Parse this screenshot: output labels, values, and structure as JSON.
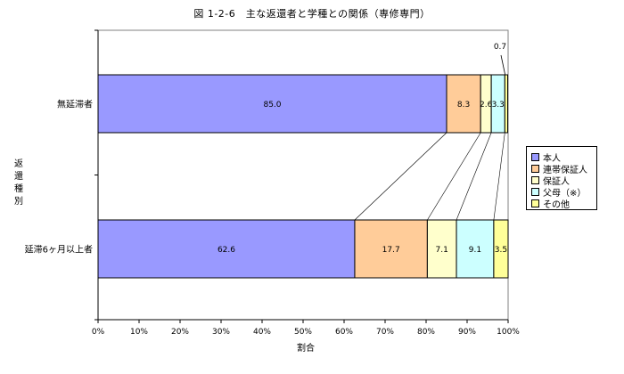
{
  "title": "図 1-2-6　主な返還者と学種との関係（専修専門）",
  "ylabel_chars": [
    "返",
    "還",
    "種",
    "別"
  ],
  "chart_data": {
    "type": "bar",
    "orientation": "horizontal",
    "stacked": "percent",
    "categories": [
      "無延滞者",
      "延滞6ヶ月以上者"
    ],
    "series": [
      {
        "name": "本人",
        "color": "#9999ff",
        "values": [
          85.0,
          62.6
        ],
        "labels": [
          "85.0",
          "62.6"
        ]
      },
      {
        "name": "連帯保証人",
        "color": "#ffcc99",
        "values": [
          8.3,
          17.7
        ],
        "labels": [
          "8.3",
          "17.7"
        ]
      },
      {
        "name": "保証人",
        "color": "#ffffcc",
        "values": [
          2.6,
          7.1
        ],
        "labels": [
          "2.6",
          "7.1"
        ]
      },
      {
        "name": "父母（※）",
        "color": "#ccffff",
        "values": [
          3.3,
          9.1
        ],
        "labels": [
          "3.3",
          "9.1"
        ]
      },
      {
        "name": "その他",
        "color": "#ffff99",
        "values": [
          0.7,
          3.5
        ],
        "labels": [
          "",
          "3.5"
        ]
      }
    ],
    "callout_label": "0.7",
    "xlabel": "割合",
    "xlim": [
      0,
      100
    ],
    "xticks": [
      "0%",
      "10%",
      "20%",
      "30%",
      "40%",
      "50%",
      "60%",
      "70%",
      "80%",
      "90%",
      "100%"
    ],
    "series_lines": true,
    "grid": false,
    "legend_position": "right"
  }
}
